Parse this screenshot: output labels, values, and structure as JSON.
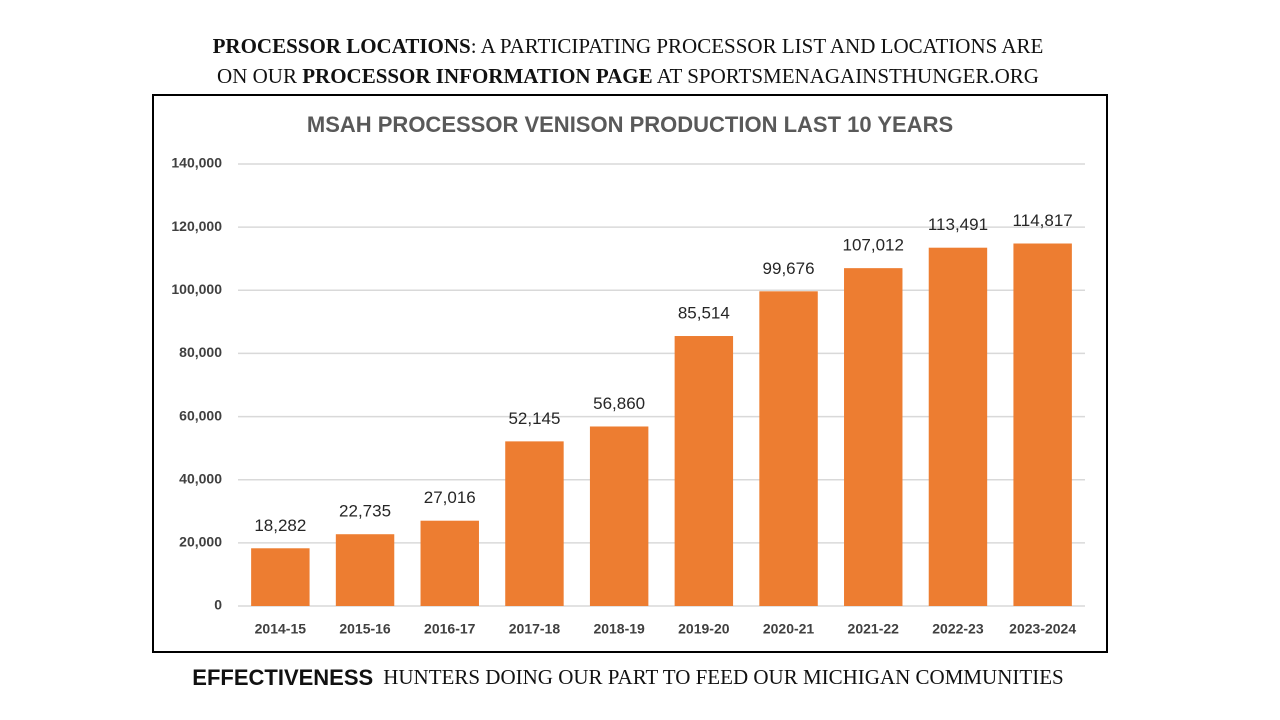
{
  "header": {
    "line1": {
      "bold": "PROCESSOR LOCATIONS",
      "rest": ": A PARTICIPATING PROCESSOR LIST AND LOCATIONS ARE"
    },
    "line2": {
      "start": "ON OUR ",
      "bold": "PROCESSOR INFORMATION PAGE",
      "rest": " AT SPORTSMENAGAINSTHUNGER.ORG"
    }
  },
  "footer": {
    "bold": "EFFECTIVENESS",
    "rest": "HUNTERS DOING OUR PART TO FEED OUR MICHIGAN COMMUNITIES"
  },
  "chart_data": {
    "type": "bar",
    "title": "MSAH PROCESSOR VENISON PRODUCTION LAST 10 YEARS",
    "categories": [
      "2014-15",
      "2015-16",
      "2016-17",
      "2017-18",
      "2018-19",
      "2019-20",
      "2020-21",
      "2021-22",
      "2022-23",
      "2023-2024"
    ],
    "values": [
      18282,
      22735,
      27016,
      52145,
      56860,
      85514,
      99676,
      107012,
      113491,
      114817
    ],
    "value_labels": [
      "18,282",
      "22,735",
      "27,016",
      "52,145",
      "56,860",
      "85,514",
      "99,676",
      "107,012",
      "113,491",
      "114,817"
    ],
    "color": "#ed7d31",
    "ylim": [
      0,
      140000
    ],
    "yticks": [
      0,
      {
        "value": 20000,
        "label": "20,000"
      },
      {
        "value": 40000,
        "label": "40,000"
      },
      {
        "value": 60000,
        "label": "60,000"
      },
      {
        "value": 80000,
        "label": "80,000"
      },
      {
        "value": 100000,
        "label": "100,000"
      },
      {
        "value": 120000,
        "label": "120,000"
      },
      {
        "value": 140000,
        "label": "140,000"
      }
    ],
    "grid": true
  }
}
